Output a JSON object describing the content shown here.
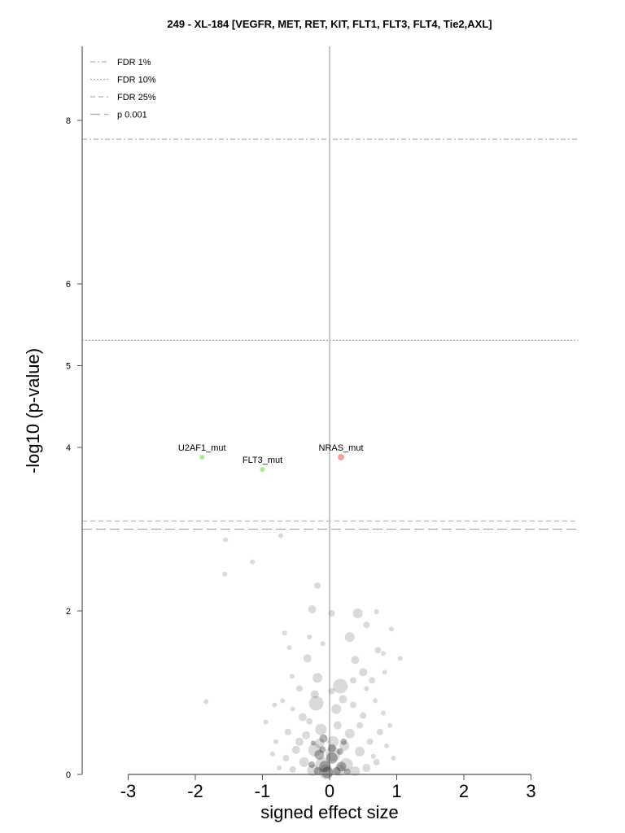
{
  "chart_data": {
    "type": "scatter",
    "title": "249 - XL-184 [VEGFR, MET, RET, KIT, FLT1, FLT3, FLT4, Tie2,AXL]",
    "xlabel": "signed effect size",
    "ylabel": "-log10 (p-value)",
    "xlim": [
      -3.3,
      3.7
    ],
    "ylim": [
      0,
      8.9
    ],
    "x_ticks": [
      -3,
      -2,
      -1,
      0,
      1,
      2,
      3
    ],
    "y_ticks": [
      0,
      2,
      4,
      5,
      6,
      8
    ],
    "grid": false,
    "legend_position": "top-left",
    "thresholds": [
      {
        "name": "FDR 1%",
        "y": 7.77,
        "style": "dashdot",
        "color": "#b0b0b0"
      },
      {
        "name": "FDR 10%",
        "y": 5.31,
        "style": "dotted",
        "color": "#b0b0b0"
      },
      {
        "name": "FDR 25%",
        "y": 3.1,
        "style": "dashed",
        "color": "#b0b0b0"
      },
      {
        "name": "p 0.001",
        "y": 3.0,
        "style": "longdash",
        "color": "#a8a8a8"
      }
    ],
    "highlighted_points": [
      {
        "label": "U2AF1_mut",
        "x": -1.9,
        "y": 3.88,
        "color": "#a6ee8e"
      },
      {
        "label": "FLT3_mut",
        "x": -1.0,
        "y": 3.73,
        "color": "#a6ee8e"
      },
      {
        "label": "NRAS_mut",
        "x": 0.17,
        "y": 3.88,
        "color": "#f4a0a0"
      }
    ],
    "background_points": [
      [
        -1.55,
        2.87,
        3
      ],
      [
        -0.73,
        2.92,
        3
      ],
      [
        -1.15,
        2.6,
        3
      ],
      [
        -1.56,
        2.45,
        3
      ],
      [
        -0.18,
        2.31,
        4
      ],
      [
        0.03,
        1.97,
        4
      ],
      [
        -0.26,
        2.02,
        5
      ],
      [
        0.42,
        1.97,
        6
      ],
      [
        0.7,
        1.99,
        3
      ],
      [
        0.55,
        1.83,
        4
      ],
      [
        0.92,
        1.78,
        3
      ],
      [
        -0.67,
        1.73,
        3
      ],
      [
        -0.3,
        1.68,
        3
      ],
      [
        0.3,
        1.68,
        6
      ],
      [
        -0.1,
        1.6,
        3
      ],
      [
        0.72,
        1.52,
        4
      ],
      [
        0.38,
        1.4,
        5
      ],
      [
        -0.33,
        1.42,
        5
      ],
      [
        1.05,
        1.42,
        3
      ],
      [
        0.8,
        1.48,
        3
      ],
      [
        -0.6,
        1.55,
        3
      ],
      [
        0.5,
        1.25,
        5
      ],
      [
        -0.18,
        1.18,
        6
      ],
      [
        0.16,
        1.08,
        9
      ],
      [
        0.35,
        1.15,
        4
      ],
      [
        0.63,
        1.15,
        4
      ],
      [
        -0.56,
        1.2,
        3
      ],
      [
        0.82,
        1.25,
        3
      ],
      [
        0.55,
        1.05,
        3
      ],
      [
        -0.45,
        1.05,
        4
      ],
      [
        0.03,
        1.02,
        4
      ],
      [
        -0.22,
        0.98,
        5
      ],
      [
        0.2,
        0.92,
        5
      ],
      [
        -0.2,
        0.87,
        9
      ],
      [
        0.35,
        0.85,
        4
      ],
      [
        0.68,
        0.9,
        3
      ],
      [
        -0.7,
        0.9,
        3
      ],
      [
        -0.82,
        0.85,
        3
      ],
      [
        0.1,
        0.8,
        6
      ],
      [
        -1.84,
        0.89,
        3
      ],
      [
        -0.95,
        0.64,
        3
      ],
      [
        -0.4,
        0.7,
        5
      ],
      [
        0.5,
        0.72,
        4
      ],
      [
        0.9,
        0.6,
        3
      ],
      [
        -0.62,
        0.52,
        4
      ],
      [
        0.75,
        0.52,
        4
      ],
      [
        -0.35,
        0.48,
        5
      ],
      [
        0.3,
        0.5,
        6
      ],
      [
        -0.13,
        0.55,
        7
      ],
      [
        0.6,
        0.4,
        4
      ],
      [
        -0.8,
        0.4,
        3
      ],
      [
        0.85,
        0.35,
        3
      ],
      [
        -0.5,
        0.3,
        5
      ],
      [
        0.45,
        0.28,
        6
      ],
      [
        -0.22,
        0.3,
        8
      ],
      [
        0.05,
        0.25,
        9
      ],
      [
        -0.65,
        0.2,
        4
      ],
      [
        0.7,
        0.15,
        4
      ],
      [
        -0.38,
        0.15,
        6
      ],
      [
        0.25,
        0.12,
        8
      ],
      [
        -0.1,
        0.12,
        9
      ],
      [
        0.55,
        0.08,
        5
      ],
      [
        -0.75,
        0.08,
        3
      ],
      [
        -0.55,
        0.06,
        4
      ],
      [
        0.15,
        0.05,
        7
      ],
      [
        -0.25,
        0.05,
        7
      ],
      [
        0.38,
        0.04,
        6
      ],
      [
        -0.05,
        0.03,
        9
      ],
      [
        0.65,
        0.22,
        3
      ],
      [
        -0.85,
        0.25,
        3
      ],
      [
        0.95,
        0.2,
        3
      ],
      [
        -0.3,
        0.65,
        4
      ],
      [
        0.12,
        0.6,
        5
      ],
      [
        0.45,
        0.6,
        4
      ],
      [
        -0.45,
        0.4,
        5
      ],
      [
        0.05,
        0.4,
        7
      ],
      [
        0.22,
        0.35,
        6
      ],
      [
        -0.15,
        0.38,
        6
      ],
      [
        0.8,
        0.75,
        3
      ],
      [
        -0.55,
        0.8,
        3
      ]
    ]
  }
}
